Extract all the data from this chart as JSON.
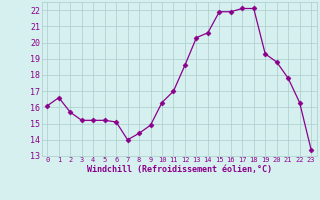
{
  "x": [
    0,
    1,
    2,
    3,
    4,
    5,
    6,
    7,
    8,
    9,
    10,
    11,
    12,
    13,
    14,
    15,
    16,
    17,
    18,
    19,
    20,
    21,
    22,
    23
  ],
  "y": [
    16.1,
    16.6,
    15.7,
    15.2,
    15.2,
    15.2,
    15.1,
    14.0,
    14.4,
    14.9,
    16.3,
    17.0,
    18.6,
    20.3,
    20.6,
    21.9,
    21.9,
    22.1,
    22.1,
    19.3,
    18.8,
    17.8,
    16.3,
    13.4
  ],
  "line_color": "#8b008b",
  "marker": "D",
  "marker_size": 2.5,
  "bg_color": "#d6f0f0",
  "grid_color": "#aacccc",
  "xlabel": "Windchill (Refroidissement éolien,°C)",
  "xlabel_color": "#8b008b",
  "tick_color": "#8b008b",
  "ylim": [
    13,
    22.5
  ],
  "yticks": [
    13,
    14,
    15,
    16,
    17,
    18,
    19,
    20,
    21,
    22
  ],
  "xticks": [
    0,
    1,
    2,
    3,
    4,
    5,
    6,
    7,
    8,
    9,
    10,
    11,
    12,
    13,
    14,
    15,
    16,
    17,
    18,
    19,
    20,
    21,
    22,
    23
  ]
}
